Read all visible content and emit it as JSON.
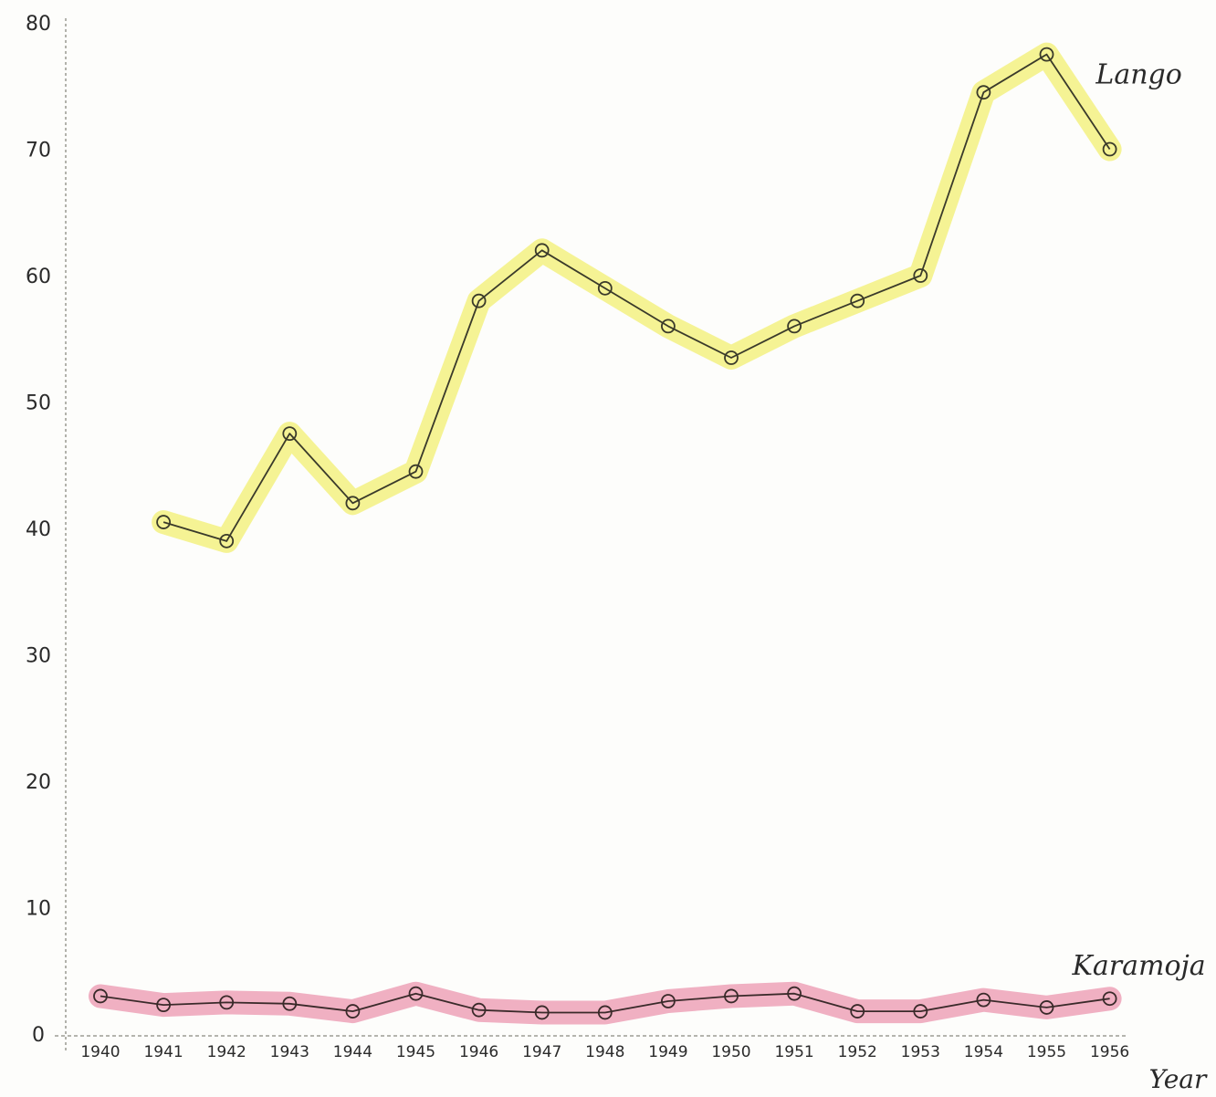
{
  "chart_data": {
    "type": "line",
    "title": "",
    "xlabel": "Year",
    "ylabel": "",
    "ylim": [
      0,
      80
    ],
    "yticks": [
      0,
      10,
      20,
      30,
      40,
      50,
      60,
      70,
      80
    ],
    "x": [
      "1940",
      "1941",
      "1942",
      "1943",
      "1944",
      "1945",
      "1946",
      "1947",
      "1948",
      "1949",
      "1950",
      "1951",
      "1952",
      "1953",
      "1954",
      "1955",
      "1956"
    ],
    "grid": false,
    "legend": "inline labels at right end of each series",
    "series": [
      {
        "name": "Lango",
        "highlight_color": "#f2f07a",
        "line_color": "#3a3a2a",
        "x": [
          "1941",
          "1942",
          "1943",
          "1944",
          "1945",
          "1946",
          "1947",
          "1948",
          "1949",
          "1950",
          "1951",
          "1952",
          "1953",
          "1954",
          "1955",
          "1956"
        ],
        "values": [
          40.5,
          39,
          47.5,
          42,
          44.5,
          58,
          62,
          59,
          56,
          53.5,
          56,
          58,
          60,
          74.5,
          77.5,
          70
        ]
      },
      {
        "name": "Karamoja",
        "highlight_color": "#ec9cb4",
        "line_color": "#3a2a2a",
        "x": [
          "1940",
          "1941",
          "1942",
          "1943",
          "1944",
          "1945",
          "1946",
          "1947",
          "1948",
          "1949",
          "1950",
          "1951",
          "1952",
          "1953",
          "1954",
          "1955",
          "1956"
        ],
        "values": [
          3,
          2.3,
          2.5,
          2.4,
          1.8,
          3.2,
          1.9,
          1.7,
          1.7,
          2.6,
          3,
          3.2,
          1.8,
          1.8,
          2.7,
          2.1,
          2.8
        ]
      }
    ]
  }
}
